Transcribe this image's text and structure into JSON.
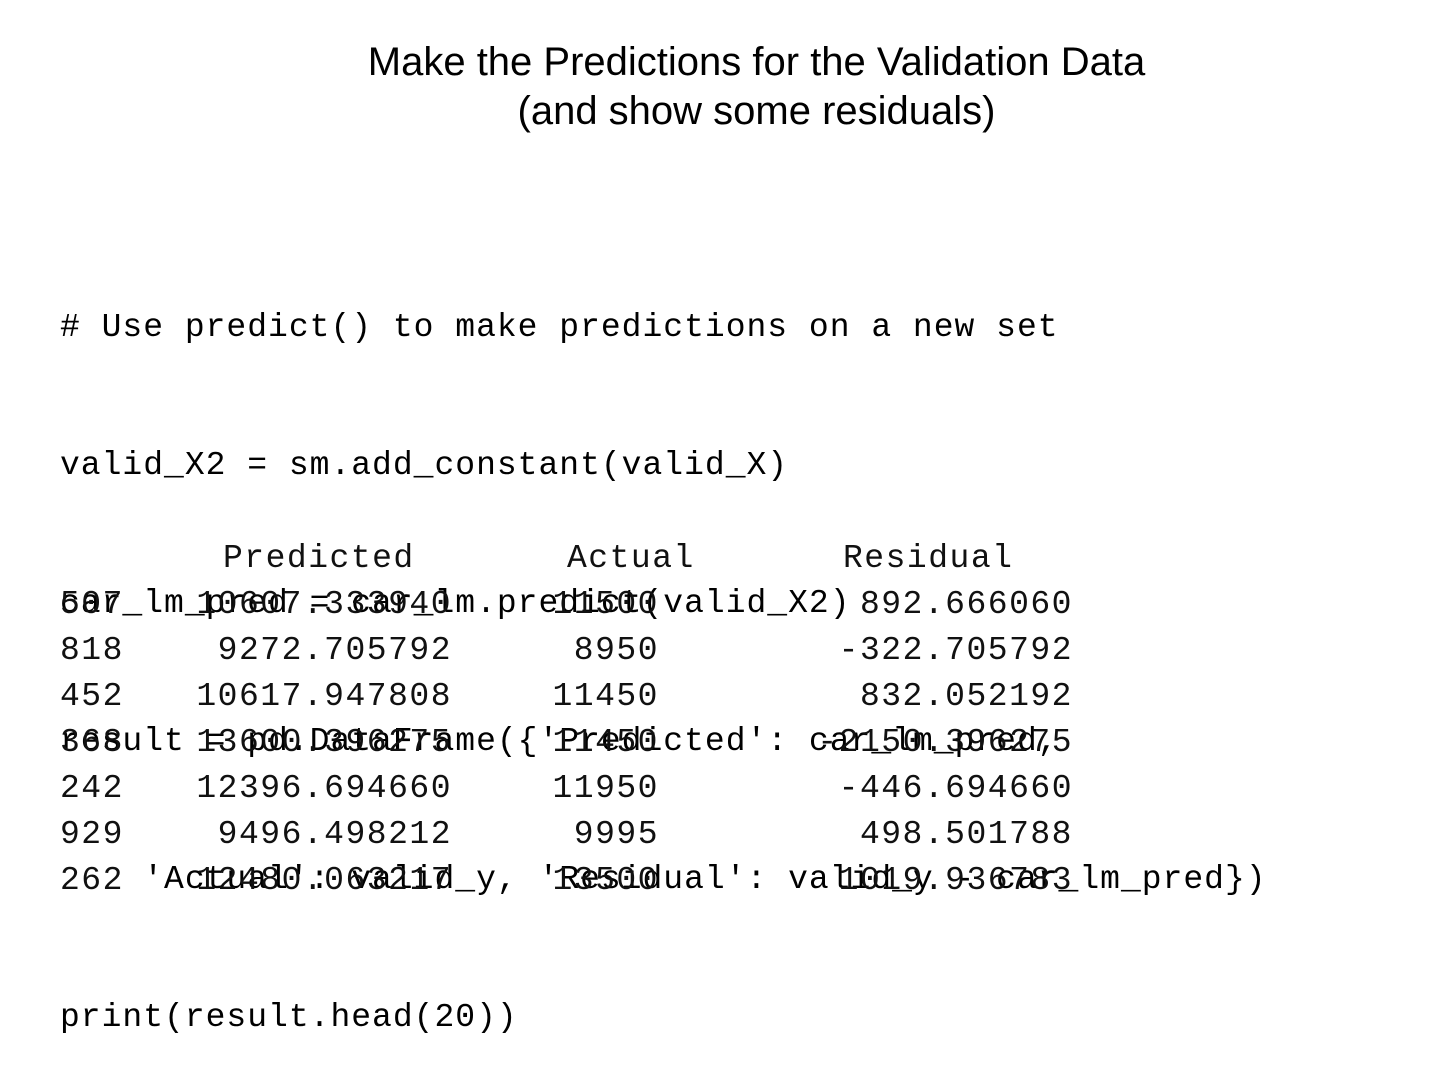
{
  "title": {
    "line1": "Make the Predictions for the Validation Data",
    "line2": "(and show some residuals)"
  },
  "code": {
    "lines": [
      "# Use predict() to make predictions on a new set",
      "valid_X2 = sm.add_constant(valid_X)",
      "car_lm_pred = car_lm.predict(valid_X2)",
      "result = pd.DataFrame({'Predicted': car_lm_pred,",
      "    'Actual': valid_y, 'Residual': valid_y - car_lm_pred})",
      "print(result.head(20))"
    ]
  },
  "table": {
    "headers": {
      "predicted": "Predicted",
      "actual": "Actual",
      "residual": "Residual"
    },
    "rows": [
      {
        "index": "507",
        "predicted": "10607.333940",
        "actual": "11500",
        "residual": "892.666060"
      },
      {
        "index": "818",
        "predicted": "9272.705792",
        "actual": "8950",
        "residual": "-322.705792"
      },
      {
        "index": "452",
        "predicted": "10617.947808",
        "actual": "11450",
        "residual": "832.052192"
      },
      {
        "index": "368",
        "predicted": "13600.396275",
        "actual": "11450",
        "residual": "-2150.396275"
      },
      {
        "index": "242",
        "predicted": "12396.694660",
        "actual": "11950",
        "residual": "-446.694660"
      },
      {
        "index": "929",
        "predicted": "9496.498212",
        "actual": "9995",
        "residual": "498.501788"
      },
      {
        "index": "262",
        "predicted": "12480.063217",
        "actual": "13500",
        "residual": "1019.936783"
      }
    ]
  }
}
